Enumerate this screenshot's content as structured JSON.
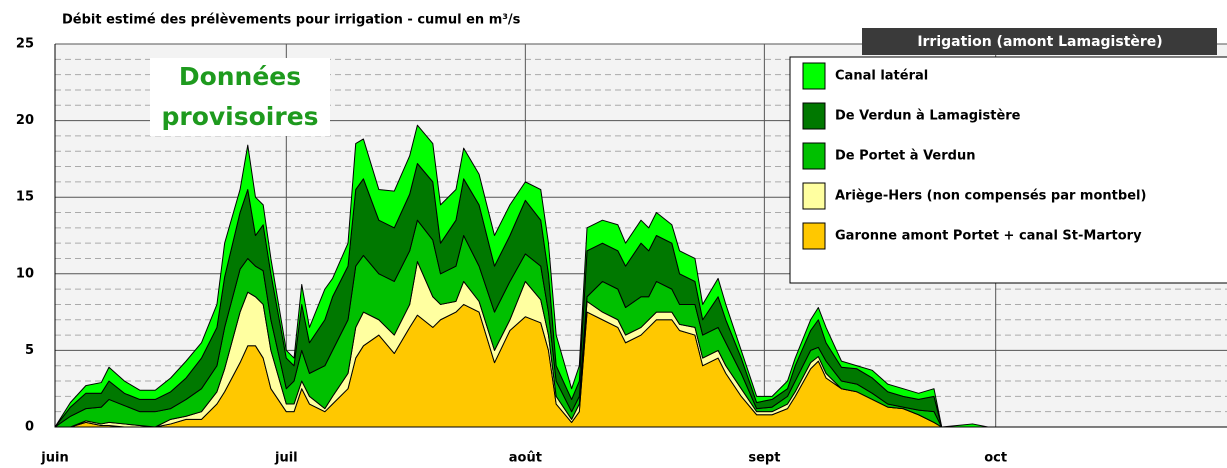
{
  "chart_data": {
    "type": "stacked_area",
    "title": "Débit estimé des prélèvements pour irrigation - cumul en m³/s",
    "badge": "Irrigation (amont Lamagistère)",
    "annotation": [
      "Données",
      "provisoires"
    ],
    "annotation_color": "#1e9a1e",
    "x": [
      0,
      2,
      4,
      6,
      7,
      9,
      11,
      13,
      15,
      17,
      19,
      21,
      22,
      24,
      25,
      26,
      27,
      28,
      30,
      31,
      32,
      33,
      35,
      36,
      38,
      39,
      40,
      42,
      44,
      46,
      47,
      49,
      50,
      52,
      53,
      55,
      57,
      59,
      61,
      63,
      64,
      65,
      67,
      68,
      69,
      71,
      73,
      74,
      76,
      77,
      78,
      80,
      81,
      83,
      84,
      86,
      87,
      89,
      91,
      93,
      95,
      96,
      98,
      99,
      100,
      102,
      104,
      106,
      108,
      110,
      112,
      114,
      115,
      117,
      119,
      121
    ],
    "series": [
      {
        "name": "Garonne amont Portet + canal St-Martory",
        "color": "#ffc800",
        "values": [
          0,
          0,
          0.3,
          0.1,
          0.1,
          0,
          0,
          0,
          0.2,
          0.5,
          0.5,
          1.5,
          2.3,
          4.2,
          5.3,
          5.3,
          4.5,
          2.5,
          1.0,
          1.0,
          2.5,
          1.5,
          1.0,
          1.5,
          2.5,
          4.5,
          5.3,
          6.0,
          4.8,
          6.5,
          7.3,
          6.5,
          7.0,
          7.5,
          8.0,
          7.5,
          4.2,
          6.3,
          7.2,
          6.8,
          5.0,
          1.5,
          0.3,
          1.0,
          7.5,
          7.0,
          6.5,
          5.5,
          6.0,
          6.5,
          7.0,
          7.0,
          6.3,
          6.0,
          4.0,
          4.5,
          3.5,
          2.0,
          0.8,
          0.8,
          1.2,
          2.0,
          3.8,
          4.3,
          3.2,
          2.5,
          2.3,
          1.8,
          1.3,
          1.2,
          0.8,
          0.3,
          0,
          0,
          0,
          0
        ]
      },
      {
        "name": "Ariège-Hers (non compensés par montbel)",
        "color": "#ffffa0",
        "values": [
          0,
          0,
          0.1,
          0.1,
          0.2,
          0.2,
          0.1,
          0,
          0.3,
          0.2,
          0.5,
          0.8,
          1.5,
          3.3,
          3.5,
          3.2,
          3.5,
          2.5,
          0.5,
          0.5,
          0.5,
          0.5,
          0.2,
          0.5,
          1.0,
          2.0,
          2.2,
          1.0,
          1.2,
          1.5,
          3.5,
          2.0,
          1.0,
          0.7,
          1.5,
          0.7,
          0.8,
          0.7,
          2.3,
          1.5,
          1.0,
          0.5,
          0.2,
          0.5,
          0.7,
          0.5,
          0.5,
          0.5,
          0.5,
          0.5,
          0.5,
          0.5,
          0.4,
          0.5,
          0.5,
          0.5,
          0.5,
          0.5,
          0.2,
          0.2,
          0.3,
          0.3,
          0.4,
          0.3,
          0.3,
          0,
          0,
          0,
          0,
          0,
          0,
          0,
          0,
          0,
          0,
          0
        ]
      },
      {
        "name": "De Portet à Verdun",
        "color": "#00c000",
        "values": [
          0,
          0.7,
          0.8,
          1.1,
          1.5,
          1.2,
          0.9,
          1.0,
          0.7,
          1.1,
          1.5,
          1.7,
          2.7,
          2.8,
          2.2,
          2.0,
          2.2,
          2.0,
          1.0,
          1.5,
          2.0,
          1.5,
          2.8,
          3.0,
          3.5,
          4.0,
          3.7,
          3.0,
          3.5,
          3.5,
          2.7,
          3.7,
          2.0,
          2.3,
          3.0,
          2.3,
          2.5,
          2.5,
          1.8,
          2.2,
          1.5,
          1.0,
          0.5,
          0.5,
          0.3,
          2.0,
          2.0,
          1.8,
          2.0,
          1.5,
          2.0,
          1.5,
          1.3,
          1.5,
          1.5,
          1.5,
          1.5,
          1.0,
          0.2,
          0.3,
          0.5,
          0.7,
          0.8,
          0.6,
          0.8,
          0.5,
          0.5,
          0.4,
          0.2,
          0.1,
          0.3,
          0.7,
          0,
          0,
          0,
          0
        ]
      },
      {
        "name": "De Verdun à Lamagistère",
        "color": "#007800",
        "values": [
          0,
          0.6,
          1.0,
          0.9,
          1.2,
          0.8,
          0.8,
          0.8,
          1.1,
          1.4,
          2.0,
          2.5,
          3.3,
          3.7,
          4.5,
          2.0,
          3.0,
          3.0,
          2.0,
          1.0,
          3.0,
          2.0,
          3.0,
          3.5,
          3.5,
          5.0,
          5.0,
          3.5,
          3.5,
          3.7,
          3.7,
          3.8,
          2.0,
          3.0,
          3.7,
          4.0,
          3.0,
          3.0,
          3.5,
          3.0,
          2.5,
          1.0,
          0.8,
          1.0,
          3.0,
          2.5,
          2.5,
          2.7,
          3.5,
          3.0,
          3.0,
          3.0,
          2.0,
          1.5,
          1.0,
          2.0,
          1.5,
          1.0,
          0.4,
          0.5,
          0.5,
          1.0,
          1.3,
          1.8,
          1.2,
          0.9,
          1.0,
          1.0,
          0.8,
          0.7,
          0.7,
          1.0,
          0,
          0,
          0,
          0
        ]
      },
      {
        "name": "Canal latéral",
        "color": "#00ff00",
        "values": [
          0,
          0.3,
          0.5,
          0.7,
          0.9,
          0.8,
          0.6,
          0.6,
          0.9,
          1.1,
          1.0,
          1.5,
          2.2,
          1.5,
          2.9,
          2.5,
          1.3,
          1.0,
          0.5,
          0.5,
          1.3,
          1.0,
          2.0,
          1.2,
          1.5,
          3.0,
          2.6,
          2.0,
          2.4,
          2.5,
          2.5,
          2.5,
          2.5,
          2.0,
          2.0,
          2.0,
          2.0,
          2.0,
          1.2,
          2.0,
          2.0,
          2.0,
          0.7,
          1.0,
          1.5,
          1.5,
          1.7,
          1.5,
          1.5,
          1.5,
          1.5,
          1.2,
          1.5,
          1.5,
          1.0,
          1.2,
          1.0,
          0.5,
          0.4,
          0.2,
          0.5,
          0.5,
          0.7,
          0.8,
          1.0,
          0.4,
          0.2,
          0.5,
          0.5,
          0.5,
          0.4,
          0.5,
          0,
          0.1,
          0.2,
          0
        ]
      }
    ],
    "xlim": [
      0,
      152
    ],
    "xticks": [
      {
        "value": 0,
        "label": "juin"
      },
      {
        "value": 30,
        "label": "juil"
      },
      {
        "value": 61,
        "label": "août"
      },
      {
        "value": 92,
        "label": "sept"
      },
      {
        "value": 122,
        "label": "oct"
      }
    ],
    "ylim": [
      0,
      25
    ],
    "yticks": [
      0,
      5,
      10,
      15,
      20,
      25
    ],
    "grid": true,
    "legend": "upper right"
  }
}
